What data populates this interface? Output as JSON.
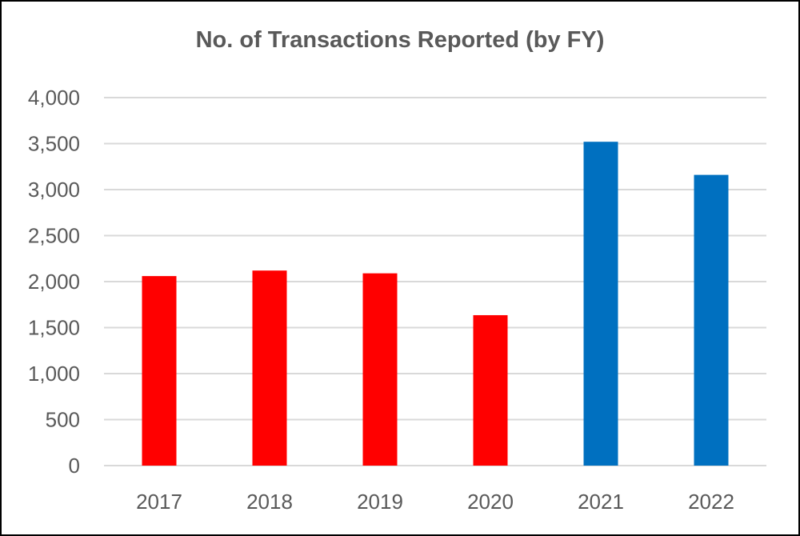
{
  "chart_data": {
    "type": "bar",
    "title": "No. of Transactions Reported (by FY)",
    "xlabel": "",
    "ylabel": "",
    "categories": [
      "2017",
      "2018",
      "2019",
      "2020",
      "2021",
      "2022"
    ],
    "values": [
      2060,
      2120,
      2090,
      1635,
      3520,
      3160
    ],
    "bar_colors": [
      "#ff0000",
      "#ff0000",
      "#ff0000",
      "#ff0000",
      "#0070c0",
      "#0070c0"
    ],
    "ylim": [
      0,
      4000
    ],
    "yticks": [
      0,
      500,
      1000,
      1500,
      2000,
      2500,
      3000,
      3500,
      4000
    ],
    "ytick_labels": [
      "0",
      "500",
      "1,000",
      "1,500",
      "2,000",
      "2,500",
      "3,000",
      "3,500",
      "4,000"
    ],
    "grid": true,
    "legend": "none",
    "colors": {
      "gridline": "#d9d9d9",
      "text": "#595959",
      "border": "#000000"
    }
  }
}
